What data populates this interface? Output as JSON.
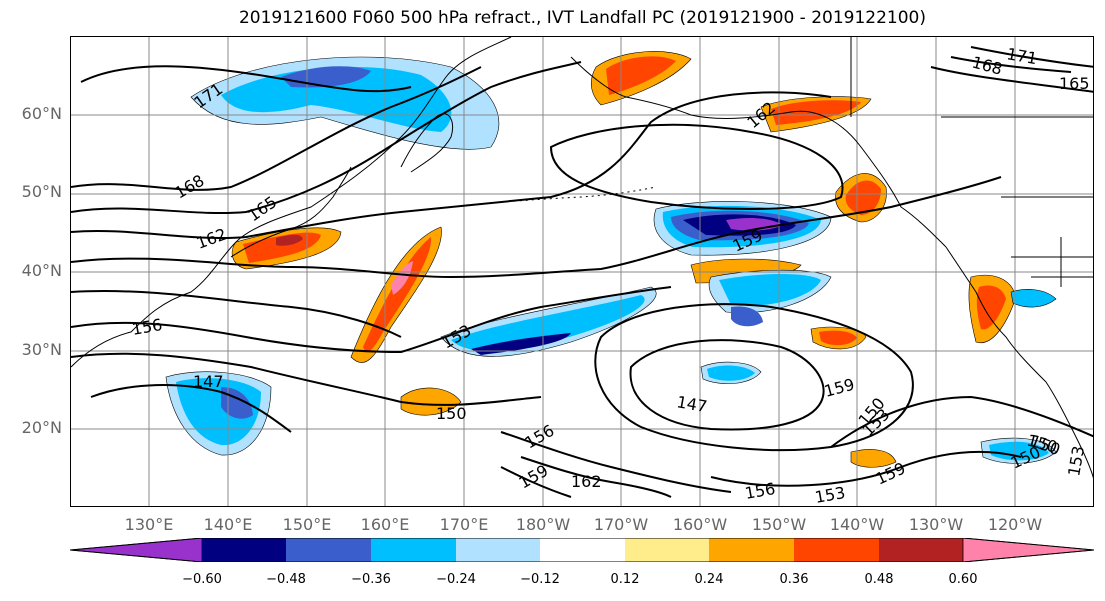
{
  "title": "2019121600 F060 500 hPa refract., IVT Landfall PC (2019121900 - 2019122100)",
  "lat_labels": [
    "60°N",
    "50°N",
    "40°N",
    "30°N",
    "20°N"
  ],
  "lon_labels": [
    "130°E",
    "140°E",
    "150°E",
    "160°E",
    "170°E",
    "180°W",
    "170°W",
    "160°W",
    "150°W",
    "140°W",
    "130°W",
    "120°W"
  ],
  "contour_labels": [
    "171",
    "168",
    "165",
    "162",
    "159",
    "156",
    "153",
    "150",
    "147",
    "168",
    "171",
    "165",
    "162",
    "159",
    "153",
    "150",
    "147",
    "156",
    "159",
    "162",
    "156",
    "150",
    "153",
    "150",
    "150",
    "159",
    "153"
  ],
  "colorbar": {
    "ticks": [
      "−0.60",
      "−0.48",
      "−0.36",
      "−0.24",
      "−0.12",
      "0.12",
      "0.24",
      "0.36",
      "0.48",
      "0.60"
    ],
    "colors": [
      "#9932cc",
      "#000080",
      "#3a5fcd",
      "#00bfff",
      "#b0e2ff",
      "#ffffff",
      "#ffec8b",
      "#ffa500",
      "#ff4500",
      "#b22222",
      "#ff82ab"
    ]
  },
  "colors": {
    "contour": "#000000",
    "grid": "#888888",
    "coast": "#000000"
  }
}
